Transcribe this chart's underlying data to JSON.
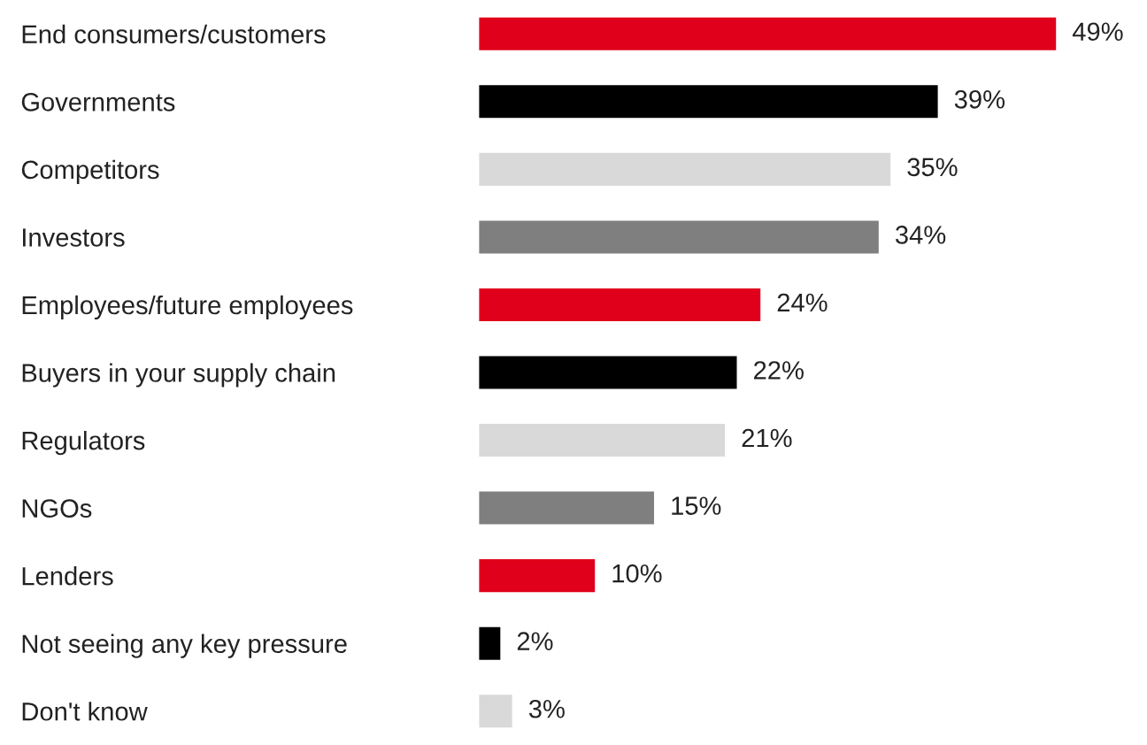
{
  "chart_data": {
    "type": "bar",
    "orientation": "horizontal",
    "categories": [
      "End consumers/customers",
      "Governments",
      "Competitors",
      "Investors",
      "Employees/future employees",
      "Buyers in your supply chain",
      "Regulators",
      "NGOs",
      "Lenders",
      "Not seeing any key pressure",
      "Don't know"
    ],
    "values": [
      49,
      39,
      35,
      34,
      24,
      22,
      21,
      15,
      10,
      2,
      3
    ],
    "value_labels": [
      "49%",
      "39%",
      "35%",
      "34%",
      "24%",
      "22%",
      "21%",
      "15%",
      "10%",
      "2%",
      "3%"
    ],
    "colors": [
      "#e0001b",
      "#000000",
      "#d9d9d9",
      "#7f7f7f",
      "#e0001b",
      "#000000",
      "#d9d9d9",
      "#7f7f7f",
      "#e0001b",
      "#000000",
      "#d9d9d9"
    ],
    "grid": false,
    "legend": false
  }
}
